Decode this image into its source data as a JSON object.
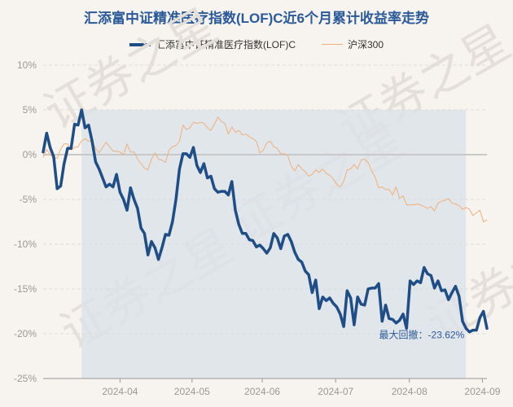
{
  "chart_data": {
    "type": "line",
    "title": "汇添富中证精准医疗指数(LOF)C近6个月累计收益率走势",
    "watermark": "证券之星",
    "ylabel": "",
    "xlabel": "",
    "ylim": [
      -25,
      10
    ],
    "yticks": [
      "10%",
      "5%",
      "0%",
      "-5%",
      "-10%",
      "-15%",
      "-20%",
      "-25%"
    ],
    "ytick_values": [
      10,
      5,
      0,
      -5,
      -10,
      -15,
      -20,
      -25
    ],
    "xticks": [
      "2024-04",
      "2024-05",
      "2024-06",
      "2024-07",
      "2024-08",
      "2024-09"
    ],
    "xtick_positions": [
      22,
      42.6,
      62.7,
      83.7,
      104.8,
      125.7
    ],
    "xlim": [
      0,
      127
    ],
    "max_drawdown": {
      "label": "最大回撤：-23.62%",
      "start_x": 11,
      "end_x": 121,
      "peak_value": 5.0
    },
    "series": [
      {
        "name": "汇添富中证精准医疗指数(LOF)C",
        "color": "#1f4e87",
        "x": [
          0,
          1,
          2,
          3,
          4,
          5,
          6,
          7,
          8,
          9,
          10,
          11,
          12,
          13,
          14,
          15,
          16,
          17,
          18,
          19,
          20,
          21,
          22,
          23,
          24,
          25,
          26,
          27,
          28,
          29,
          30,
          31,
          32,
          33,
          34,
          35,
          36,
          37,
          38,
          39,
          40,
          41,
          42,
          43,
          44,
          45,
          46,
          47,
          48,
          49,
          50,
          51,
          52,
          53,
          54,
          55,
          56,
          57,
          58,
          59,
          60,
          61,
          62,
          63,
          64,
          65,
          66,
          67,
          68,
          69,
          70,
          71,
          72,
          73,
          74,
          75,
          76,
          77,
          78,
          79,
          80,
          81,
          82,
          83,
          84,
          85,
          86,
          87,
          88,
          89,
          90,
          91,
          92,
          93,
          94,
          95,
          96,
          97,
          98,
          99,
          100,
          101,
          102,
          103,
          104,
          105,
          106,
          107,
          108,
          109,
          110,
          111,
          112,
          113,
          114,
          115,
          116,
          117,
          118,
          119,
          120,
          121,
          122,
          123,
          124,
          125,
          126,
          127
        ],
        "values": [
          0.3,
          2.4,
          0.8,
          -0.2,
          -3.8,
          -3.5,
          -1.0,
          0.7,
          0.7,
          3.4,
          3.3,
          5.0,
          3.0,
          3.3,
          1.5,
          -0.8,
          -1.6,
          -2.6,
          -3.6,
          -3.3,
          -3.6,
          -2.2,
          -4.2,
          -5.0,
          -6.2,
          -3.7,
          -5.0,
          -6.0,
          -8.2,
          -8.8,
          -11.2,
          -9.7,
          -10.4,
          -11.7,
          -10.4,
          -8.9,
          -9.0,
          -7.5,
          -5.0,
          -1.6,
          0.1,
          0.1,
          -0.3,
          0.8,
          -1.2,
          -2.0,
          -1.0,
          -2.6,
          -2.4,
          -3.8,
          -4.2,
          -4.1,
          -4.1,
          -4.5,
          -3.0,
          -6.2,
          -7.8,
          -8.8,
          -8.8,
          -9.5,
          -9.6,
          -10.3,
          -10.1,
          -10.5,
          -11.0,
          -10.4,
          -8.8,
          -9.3,
          -10.5,
          -9.1,
          -8.9,
          -9.7,
          -10.9,
          -11.7,
          -12.0,
          -13.0,
          -13.4,
          -15.4,
          -14.0,
          -17.2,
          -15.9,
          -16.3,
          -16.0,
          -16.6,
          -17.0,
          -17.8,
          -19.2,
          -15.2,
          -16.0,
          -19.0,
          -15.9,
          -16.7,
          -16.8,
          -15.0,
          -14.9,
          -14.9,
          -14.4,
          -18.6,
          -16.8,
          -18.3,
          -18.4,
          -18.8,
          -18.5,
          -17.8,
          -19.4,
          -14.1,
          -14.5,
          -14.1,
          -14.3,
          -12.6,
          -13.3,
          -13.5,
          -14.9,
          -14.1,
          -15.2,
          -15.1,
          -16.2,
          -15.4,
          -14.7,
          -15.8,
          -18.6,
          -19.4,
          -19.8,
          -19.6,
          -19.6,
          -18.2,
          -17.5,
          -19.4
        ],
        "line_width": 3.5
      },
      {
        "name": "沪深300",
        "color": "#f0b07a",
        "x": [
          0,
          1,
          2,
          3,
          4,
          5,
          6,
          7,
          8,
          9,
          10,
          11,
          12,
          13,
          14,
          15,
          16,
          17,
          18,
          19,
          20,
          21,
          22,
          23,
          24,
          25,
          26,
          27,
          28,
          29,
          30,
          31,
          32,
          33,
          34,
          35,
          36,
          37,
          38,
          39,
          40,
          41,
          42,
          43,
          44,
          45,
          46,
          47,
          48,
          49,
          50,
          51,
          52,
          53,
          54,
          55,
          56,
          57,
          58,
          59,
          60,
          61,
          62,
          63,
          64,
          65,
          66,
          67,
          68,
          69,
          70,
          71,
          72,
          73,
          74,
          75,
          76,
          77,
          78,
          79,
          80,
          81,
          82,
          83,
          84,
          85,
          86,
          87,
          88,
          89,
          90,
          91,
          92,
          93,
          94,
          95,
          96,
          97,
          98,
          99,
          100,
          101,
          102,
          103,
          104,
          105,
          106,
          107,
          108,
          109,
          110,
          111,
          112,
          113,
          114,
          115,
          116,
          117,
          118,
          119,
          120,
          121,
          122,
          123,
          124,
          125,
          126,
          127
        ],
        "values": [
          -0.3,
          0.6,
          0.0,
          -0.4,
          -0.4,
          0.6,
          1.2,
          1.2,
          0.5,
          0.8,
          0.9,
          1.5,
          1.8,
          1.5,
          1.5,
          0.7,
          0.2,
          0.8,
          1.4,
          0.9,
          0.4,
          0.4,
          0.3,
          0.0,
          1.2,
          0.3,
          0.3,
          -0.5,
          -1.0,
          -1.5,
          -1.7,
          -0.5,
          0.2,
          -0.5,
          -0.6,
          -0.9,
          0.5,
          0.9,
          1.0,
          1.5,
          3.3,
          2.8,
          3.0,
          3.6,
          3.5,
          3.6,
          3.5,
          3.0,
          2.7,
          3.4,
          4.2,
          3.7,
          3.5,
          2.3,
          3.1,
          2.5,
          2.7,
          2.2,
          2.3,
          2.0,
          1.8,
          1.5,
          0.2,
          0.5,
          1.3,
          1.5,
          0.9,
          0.7,
          0.1,
          0.1,
          -0.1,
          -1.3,
          -1.8,
          -1.1,
          -1.6,
          -1.9,
          -2.4,
          -2.2,
          -1.7,
          -2.0,
          -1.6,
          -2.1,
          -2.3,
          -2.7,
          -3.3,
          -3.6,
          -3.0,
          -1.7,
          -1.6,
          -1.1,
          -1.6,
          -0.6,
          -0.5,
          -0.9,
          -1.8,
          -2.5,
          -3.7,
          -3.6,
          -3.9,
          -3.9,
          -4.5,
          -3.6,
          -4.9,
          -4.6,
          -5.6,
          -5.6,
          -5.6,
          -5.5,
          -5.6,
          -5.8,
          -6.0,
          -5.8,
          -6.3,
          -5.4,
          -5.2,
          -5.1,
          -4.9,
          -5.4,
          -5.5,
          -5.7,
          -6.1,
          -5.9,
          -6.1,
          -6.8,
          -6.5,
          -6.2,
          -7.5,
          -7.3
        ],
        "line_width": 1
      }
    ]
  }
}
